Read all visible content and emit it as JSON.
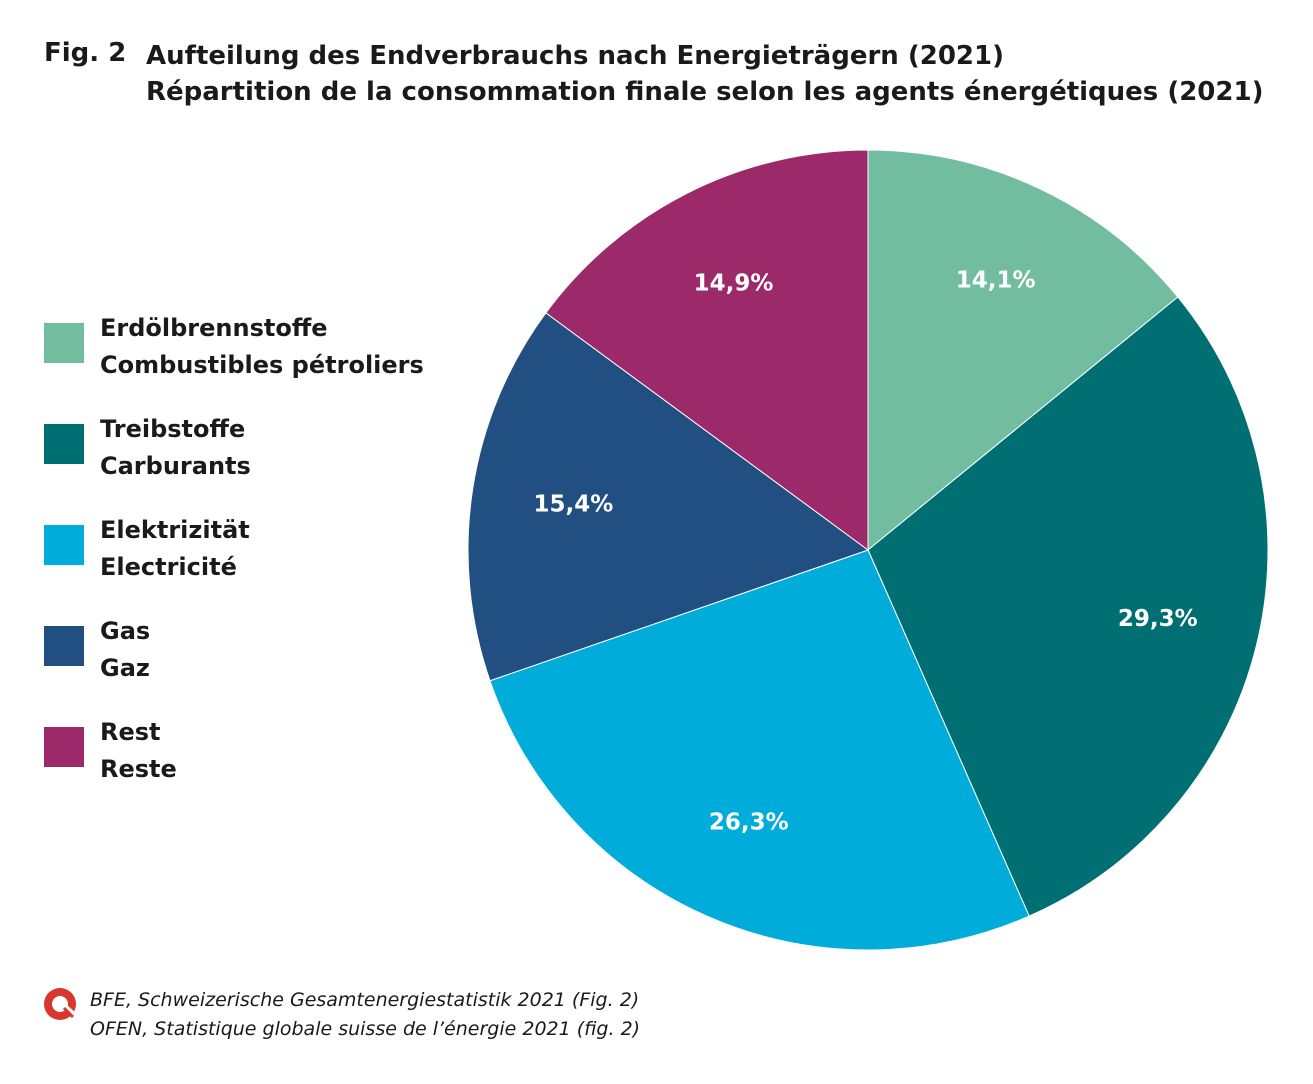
{
  "figure": {
    "label": "Fig. 2",
    "title_de": "Aufteilung des Endverbrauchs nach Energieträgern (2021)",
    "title_fr": "Répartition de la consommation finale selon les agents énergétiques (2021)"
  },
  "legend": [
    {
      "line1": "Erdölbrennstoffe",
      "line2": "Combustibles pétroliers",
      "color": "#72bd9f"
    },
    {
      "line1": "Treibstoffe",
      "line2": "Carburants",
      "color": "#006f73"
    },
    {
      "line1": "Elektrizität",
      "line2": "Electricité",
      "color": "#00acd9"
    },
    {
      "line1": "Gas",
      "line2": "Gaz",
      "color": "#224f82"
    },
    {
      "line1": "Rest",
      "line2": "Reste",
      "color": "#9c2a6b"
    }
  ],
  "chart_data": {
    "type": "pie",
    "start": "12 o'clock",
    "direction": "clockwise",
    "slices": [
      {
        "name": "Erdölbrennstoffe / Combustibles pétroliers",
        "value": 14.1,
        "label": "14,1%",
        "color": "#72bd9f"
      },
      {
        "name": "Treibstoffe / Carburants",
        "value": 29.3,
        "label": "29,3%",
        "color": "#006f73"
      },
      {
        "name": "Elektrizität / Electricité",
        "value": 26.3,
        "label": "26,3%",
        "color": "#00acd9"
      },
      {
        "name": "Gas / Gaz",
        "value": 15.4,
        "label": "15,4%",
        "color": "#224f82"
      },
      {
        "name": "Rest / Reste",
        "value": 14.9,
        "label": "14,9%",
        "color": "#9c2a6b"
      }
    ]
  },
  "source": {
    "line1": "BFE, Schweizerische Gesamtenergiestatistik 2021 (Fig. 2)",
    "line2": "OFEN, Statistique globale suisse de l’énergie 2021 (fig. 2)",
    "logo_color": "#d7372c"
  }
}
